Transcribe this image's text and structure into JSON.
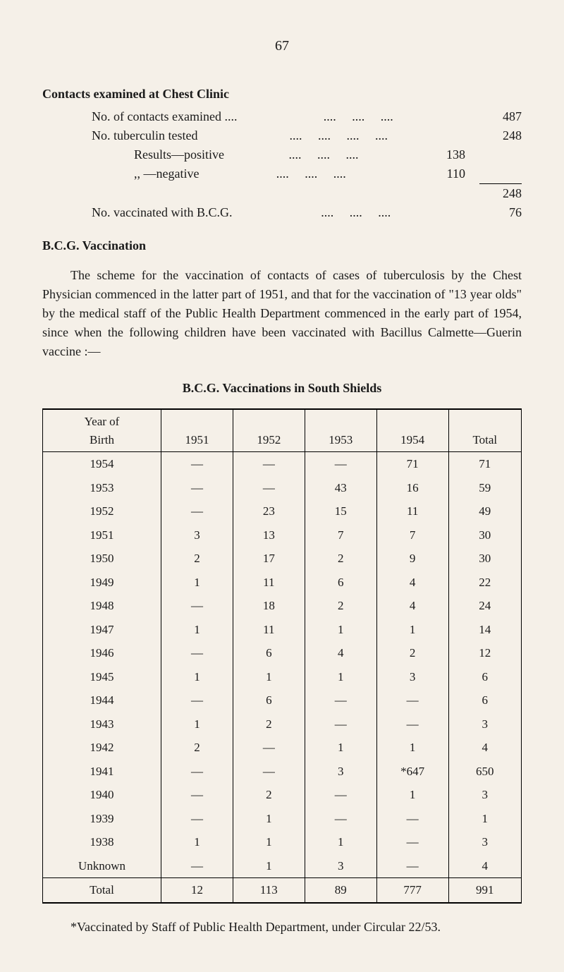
{
  "page_number": "67",
  "section1": {
    "title": "Contacts examined at Chest Clinic",
    "lines": [
      {
        "label": "No. of contacts examined ....",
        "dots": "....     ....     ....",
        "value": "487"
      },
      {
        "label": "No. tuberculin tested",
        "dots": "....     ....     ....     ....",
        "value": "248"
      }
    ],
    "sublines": [
      {
        "label": "Results—positive",
        "dots": "....     ....     ....",
        "value": "138"
      },
      {
        "label": ",,    —negative",
        "dots": "....     ....     ....",
        "value": "110"
      }
    ],
    "sum_value": "248",
    "vacc_line": {
      "label": "No. vaccinated with B.C.G.",
      "dots": "....     ....     ....",
      "value": "76"
    }
  },
  "section2": {
    "title": "B.C.G. Vaccination",
    "paragraph": "The scheme for the vaccination of contacts of cases of tuberculosis by the Chest Physician commenced in the latter part of 1951, and that for the vaccination of \"13 year olds\" by the medical staff of the Public Health Department commenced in the early part of 1954, since when the following children have been vaccinated with Bacillus Calmette—Guerin vaccine :—"
  },
  "table": {
    "title": "B.C.G. Vaccinations in South Shields",
    "header_row1": "Year of",
    "header_row2": "Birth",
    "columns": [
      "1951",
      "1952",
      "1953",
      "1954",
      "Total"
    ],
    "rows": [
      {
        "year": "1954",
        "cells": [
          "—",
          "—",
          "—",
          "71",
          "71"
        ]
      },
      {
        "year": "1953",
        "cells": [
          "—",
          "—",
          "43",
          "16",
          "59"
        ]
      },
      {
        "year": "1952",
        "cells": [
          "—",
          "23",
          "15",
          "11",
          "49"
        ]
      },
      {
        "year": "1951",
        "cells": [
          "3",
          "13",
          "7",
          "7",
          "30"
        ]
      },
      {
        "year": "1950",
        "cells": [
          "2",
          "17",
          "2",
          "9",
          "30"
        ]
      },
      {
        "year": "1949",
        "cells": [
          "1",
          "11",
          "6",
          "4",
          "22"
        ]
      },
      {
        "year": "1948",
        "cells": [
          "—",
          "18",
          "2",
          "4",
          "24"
        ]
      },
      {
        "year": "1947",
        "cells": [
          "1",
          "11",
          "1",
          "1",
          "14"
        ]
      },
      {
        "year": "1946",
        "cells": [
          "—",
          "6",
          "4",
          "2",
          "12"
        ]
      },
      {
        "year": "1945",
        "cells": [
          "1",
          "1",
          "1",
          "3",
          "6"
        ]
      },
      {
        "year": "1944",
        "cells": [
          "—",
          "6",
          "—",
          "—",
          "6"
        ]
      },
      {
        "year": "1943",
        "cells": [
          "1",
          "2",
          "—",
          "—",
          "3"
        ]
      },
      {
        "year": "1942",
        "cells": [
          "2",
          "—",
          "1",
          "1",
          "4"
        ]
      },
      {
        "year": "1941",
        "cells": [
          "—",
          "—",
          "3",
          "*647",
          "650"
        ]
      },
      {
        "year": "1940",
        "cells": [
          "—",
          "2",
          "—",
          "1",
          "3"
        ]
      },
      {
        "year": "1939",
        "cells": [
          "—",
          "1",
          "—",
          "—",
          "1"
        ]
      },
      {
        "year": "1938",
        "cells": [
          "1",
          "1",
          "1",
          "—",
          "3"
        ]
      },
      {
        "year": "Unknown",
        "cells": [
          "—",
          "1",
          "3",
          "—",
          "4"
        ]
      }
    ],
    "total_row": {
      "label": "Total",
      "cells": [
        "12",
        "113",
        "89",
        "777",
        "991"
      ]
    }
  },
  "footnote": "*Vaccinated by Staff of Public Health Department, under Circular 22/53."
}
